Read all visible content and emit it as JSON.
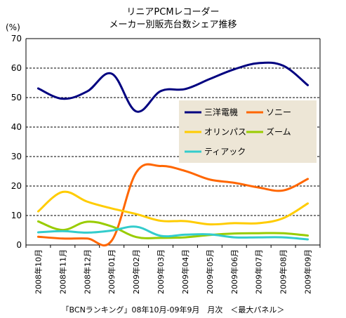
{
  "chart_data": {
    "type": "line",
    "title": "リニアPCMレコーダー",
    "subtitle": "メーカー別販売台数シェア推移",
    "ylabel": "(%)",
    "xlabel": "",
    "ylim": [
      0,
      70
    ],
    "yticks": [
      0,
      10,
      20,
      30,
      40,
      50,
      60,
      70
    ],
    "grid": "horizontal-dashed",
    "legend_position": "right-center",
    "categories": [
      "2008年10月",
      "2008年11月",
      "2008年12月",
      "2009年01月",
      "2009年02月",
      "2009年03月",
      "2009年04月",
      "2009年05月",
      "2009年06月",
      "2009年07月",
      "2009年08月",
      "2009年09月"
    ],
    "series": [
      {
        "name": "三洋電機",
        "color": "#000080",
        "values": [
          53.1,
          49.6,
          52.1,
          58.1,
          45.3,
          52.2,
          52.9,
          56.3,
          59.6,
          61.7,
          60.8,
          54.2
        ]
      },
      {
        "name": "ソニー",
        "color": "#FF6600",
        "values": [
          2.8,
          2.2,
          2.2,
          1.5,
          24.6,
          26.8,
          25.1,
          22.2,
          21.1,
          19.5,
          18.5,
          22.4
        ]
      },
      {
        "name": "オリンパス",
        "color": "#FFCC00",
        "values": [
          11.4,
          18.0,
          14.7,
          12.4,
          10.5,
          8.2,
          8.1,
          7.0,
          7.4,
          7.4,
          9.1,
          14.1
        ]
      },
      {
        "name": "ズーム",
        "color": "#99CC00",
        "values": [
          8.0,
          5.1,
          7.9,
          6.3,
          2.7,
          2.4,
          2.6,
          3.4,
          3.9,
          4.0,
          4.0,
          3.2
        ]
      },
      {
        "name": "ティアック",
        "color": "#33CCCC",
        "values": [
          4.3,
          4.7,
          4.2,
          4.9,
          6.2,
          3.1,
          3.5,
          3.6,
          2.6,
          2.6,
          2.6,
          1.9
        ]
      }
    ],
    "source_note": "「BCNランキング」08年10月-09年9月　月次　＜最大パネル＞"
  },
  "colors": {
    "legend_background": "#EDE6D6",
    "grid": "#000000",
    "axis": "#000000"
  }
}
